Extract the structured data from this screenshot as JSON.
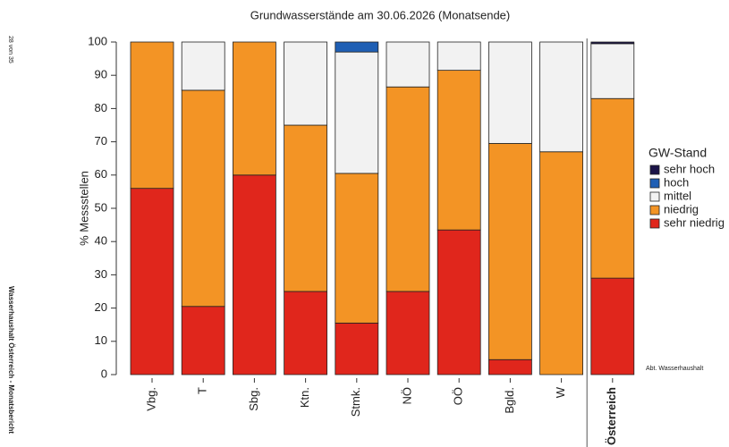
{
  "chart_data": {
    "type": "stacked_bar",
    "title": "Grundwasserstände am 30.06.2026 (Monatsende)",
    "y_label": "% Messstellen",
    "legend_title": "GW-Stand",
    "categories": [
      "Vbg.",
      "T",
      "Sbg.",
      "Ktn.",
      "Stmk.",
      "NÖ",
      "OÖ",
      "Bgld.",
      "W",
      "Österreich"
    ],
    "series": [
      {
        "name": "sehr niedrig",
        "color": "#e0261c",
        "values": [
          56,
          20.5,
          60,
          25,
          15.5,
          25,
          43.5,
          4.5,
          0,
          29
        ]
      },
      {
        "name": "niedrig",
        "color": "#f39425",
        "values": [
          44,
          65,
          40,
          50,
          45,
          61.5,
          48,
          65,
          67,
          54
        ]
      },
      {
        "name": "mittel",
        "color": "#f2f2f2",
        "values": [
          0,
          14.5,
          0,
          25,
          36.5,
          13.5,
          8.5,
          30.5,
          33,
          16.5
        ]
      },
      {
        "name": "hoch",
        "color": "#1f5fb4",
        "values": [
          0,
          0,
          0,
          0,
          3,
          0,
          0,
          0,
          0,
          0
        ]
      },
      {
        "name": "sehr hoch",
        "color": "#1b1448",
        "values": [
          0,
          0,
          0,
          0,
          0,
          0,
          0,
          0,
          0,
          0.5
        ]
      }
    ],
    "ylim": [
      0,
      100
    ],
    "yticks": [
      0,
      10,
      20,
      30,
      40,
      50,
      60,
      70,
      80,
      90,
      100
    ],
    "legend": "right",
    "page_number": "28 von 35",
    "side_note": "Wasserhaushalt Österreich - Monatsbericht",
    "source": "Abt. Wasserhaushalt"
  }
}
